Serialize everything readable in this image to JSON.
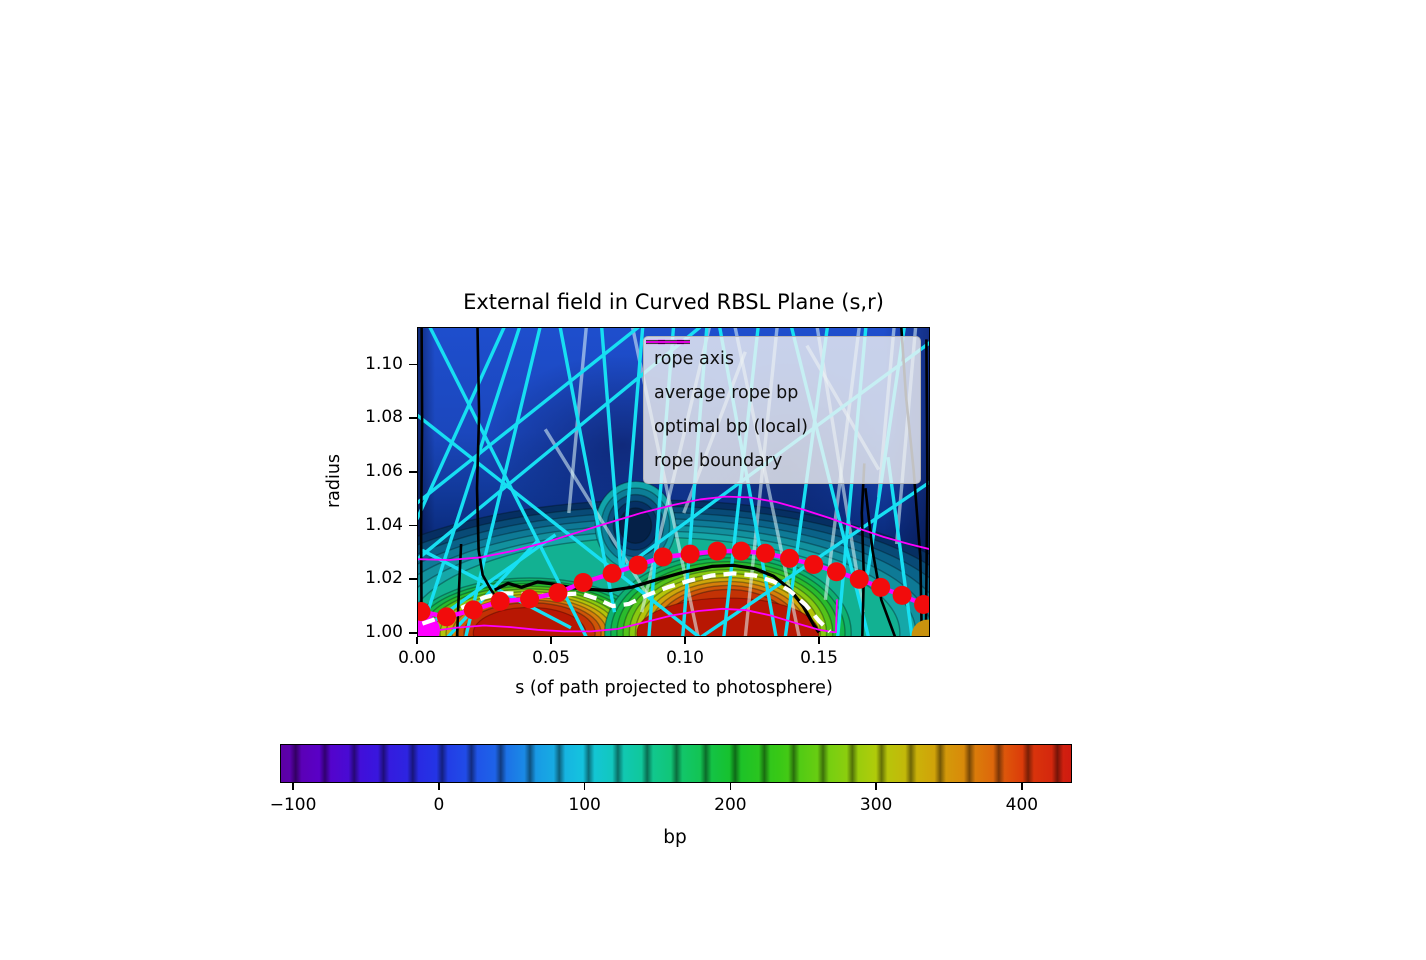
{
  "title": "External field in Curved RBSL Plane (s,r)",
  "axes": {
    "xlabel": "s (of path projected to photosphere)",
    "ylabel": "radius",
    "x_ticks": [
      {
        "value": 0.0,
        "label": "0.00"
      },
      {
        "value": 0.05,
        "label": "0.05"
      },
      {
        "value": 0.1,
        "label": "0.10"
      },
      {
        "value": 0.15,
        "label": "0.15"
      }
    ],
    "y_ticks": [
      {
        "value": 1.0,
        "label": "1.00"
      },
      {
        "value": 1.02,
        "label": "1.02"
      },
      {
        "value": 1.04,
        "label": "1.04"
      },
      {
        "value": 1.06,
        "label": "1.06"
      },
      {
        "value": 1.08,
        "label": "1.08"
      },
      {
        "value": 1.1,
        "label": "1.10"
      }
    ]
  },
  "legend": {
    "items": [
      {
        "label": "rope axis",
        "color": "#ff00ff",
        "width": 4.5,
        "dash": null
      },
      {
        "label": "average rope bp",
        "color": "#ffffff",
        "width": 4.2,
        "dash": "12 7"
      },
      {
        "label": "optimal bp (local)",
        "color": "#000000",
        "width": 3.6,
        "dash": null
      },
      {
        "label": "rope boundary",
        "color": "#ff00ff",
        "width": 1.8,
        "dash": null
      }
    ]
  },
  "colorbar": {
    "label": "bp",
    "domain": [
      -109,
      433
    ],
    "ticks": [
      {
        "value": -100,
        "label": "−100"
      },
      {
        "value": 0,
        "label": "0"
      },
      {
        "value": 100,
        "label": "100"
      },
      {
        "value": 200,
        "label": "200"
      },
      {
        "value": 300,
        "label": "300"
      },
      {
        "value": 400,
        "label": "400"
      }
    ],
    "gradient": [
      [
        0.0,
        "#5c00a4"
      ],
      [
        0.05,
        "#5a00c8"
      ],
      [
        0.11,
        "#3d12dc"
      ],
      [
        0.17,
        "#2a28e2"
      ],
      [
        0.2,
        "#2336e6"
      ],
      [
        0.27,
        "#1e62e8"
      ],
      [
        0.33,
        "#18a0e4"
      ],
      [
        0.386,
        "#14c6de"
      ],
      [
        0.45,
        "#10c8a2"
      ],
      [
        0.52,
        "#12c55e"
      ],
      [
        0.57,
        "#16c12c"
      ],
      [
        0.63,
        "#38c816"
      ],
      [
        0.7,
        "#7ccf10"
      ],
      [
        0.755,
        "#b2cb0a"
      ],
      [
        0.81,
        "#ccae09"
      ],
      [
        0.86,
        "#d88d0a"
      ],
      [
        0.905,
        "#de640b"
      ],
      [
        0.94,
        "#dc3a0a"
      ],
      [
        1.0,
        "#cf1b10"
      ]
    ]
  },
  "chart_data": {
    "type": "heatmap",
    "x_domain": [
      0,
      0.1914
    ],
    "y_domain": [
      0.9985,
      1.114
    ],
    "colormap_value_range": [
      -109,
      433
    ],
    "rope_axis_points": [
      [
        0.0015,
        1.008
      ],
      [
        0.011,
        1.006
      ],
      [
        0.021,
        1.0086
      ],
      [
        0.031,
        1.0118
      ],
      [
        0.042,
        1.0127
      ],
      [
        0.0526,
        1.015
      ],
      [
        0.062,
        1.0188
      ],
      [
        0.0728,
        1.0222
      ],
      [
        0.0825,
        1.0253
      ],
      [
        0.0918,
        1.0283
      ],
      [
        0.1019,
        1.0294
      ],
      [
        0.112,
        1.0305
      ],
      [
        0.121,
        1.0305
      ],
      [
        0.13,
        1.0297
      ],
      [
        0.139,
        1.0278
      ],
      [
        0.148,
        1.0255
      ],
      [
        0.1565,
        1.0228
      ],
      [
        0.165,
        1.02
      ],
      [
        0.173,
        1.017
      ],
      [
        0.181,
        1.014
      ],
      [
        0.189,
        1.0106
      ]
    ],
    "rope_axis_color": "#ff00ff",
    "dot_color": "#f20c0c",
    "dot_radius_px": 9.5,
    "average_bp": [
      [
        0.002,
        1.0035
      ],
      [
        0.01,
        1.0062
      ],
      [
        0.018,
        1.01
      ],
      [
        0.025,
        1.0132
      ],
      [
        0.031,
        1.0148
      ],
      [
        0.038,
        1.0147
      ],
      [
        0.046,
        1.0138
      ],
      [
        0.054,
        1.0143
      ],
      [
        0.061,
        1.0148
      ],
      [
        0.067,
        1.0128
      ],
      [
        0.073,
        1.01
      ],
      [
        0.079,
        1.0108
      ],
      [
        0.086,
        1.0142
      ],
      [
        0.094,
        1.0172
      ],
      [
        0.102,
        1.0196
      ],
      [
        0.11,
        1.0214
      ],
      [
        0.118,
        1.0222
      ],
      [
        0.126,
        1.0214
      ],
      [
        0.133,
        1.0192
      ],
      [
        0.139,
        1.0158
      ],
      [
        0.145,
        1.0105
      ],
      [
        0.15,
        1.0045
      ],
      [
        0.154,
        1.0005
      ]
    ],
    "optimal_bp": [
      [
        0.029,
        1.016
      ],
      [
        0.034,
        1.0185
      ],
      [
        0.039,
        1.017
      ],
      [
        0.045,
        1.019
      ],
      [
        0.051,
        1.0182
      ],
      [
        0.058,
        1.0168
      ],
      [
        0.065,
        1.0162
      ],
      [
        0.072,
        1.0158
      ],
      [
        0.08,
        1.017
      ],
      [
        0.09,
        1.02
      ],
      [
        0.1,
        1.0228
      ],
      [
        0.11,
        1.0248
      ],
      [
        0.118,
        1.0252
      ],
      [
        0.126,
        1.024
      ],
      [
        0.133,
        1.0212
      ],
      [
        0.139,
        1.0165
      ],
      [
        0.144,
        1.01
      ],
      [
        0.148,
        1.003
      ],
      [
        0.15,
        1.0002
      ]
    ],
    "rope_boundary_upper": [
      [
        0.0,
        1.0275
      ],
      [
        0.012,
        1.0272
      ],
      [
        0.024,
        1.0282
      ],
      [
        0.036,
        1.0306
      ],
      [
        0.048,
        1.0338
      ],
      [
        0.06,
        1.0375
      ],
      [
        0.072,
        1.0412
      ],
      [
        0.084,
        1.0448
      ],
      [
        0.096,
        1.0478
      ],
      [
        0.106,
        1.0498
      ],
      [
        0.115,
        1.0508
      ],
      [
        0.124,
        1.0505
      ],
      [
        0.134,
        1.0488
      ],
      [
        0.144,
        1.046
      ],
      [
        0.154,
        1.0428
      ],
      [
        0.164,
        1.0392
      ],
      [
        0.174,
        1.0358
      ],
      [
        0.184,
        1.033
      ],
      [
        0.1914,
        1.0312
      ]
    ],
    "rope_boundary_lower": [
      [
        0.004,
        1.0005
      ],
      [
        0.015,
        1.002
      ],
      [
        0.025,
        1.0028
      ],
      [
        0.035,
        1.0022
      ],
      [
        0.045,
        1.0012
      ],
      [
        0.055,
        1.0006
      ],
      [
        0.065,
        1.0006
      ],
      [
        0.075,
        1.0015
      ],
      [
        0.085,
        1.004
      ],
      [
        0.095,
        1.0065
      ],
      [
        0.105,
        1.0082
      ],
      [
        0.114,
        1.009
      ],
      [
        0.123,
        1.0085
      ],
      [
        0.132,
        1.0065
      ],
      [
        0.141,
        1.0038
      ],
      [
        0.15,
        1.0012
      ],
      [
        0.156,
        1.0002
      ]
    ],
    "rope_boundary_stub": [
      [
        0.1563,
        1.0
      ],
      [
        0.1567,
        1.0125
      ]
    ],
    "boundary_color": "#ff00ff",
    "footpoints": [
      {
        "s": 0.0026,
        "r": 1.001,
        "color": "#ff00ff",
        "radius_px": 16
      },
      {
        "s": 0.1905,
        "r": 0.999,
        "color": "#c8920e",
        "radius_px": 16
      }
    ],
    "field_lines": {
      "bright_color": "#17dff2",
      "pale_color": "rgba(224,247,249,0.55)",
      "bright": [
        [
          0.006,
          0.995,
          0.2,
          0.0
        ],
        [
          0.025,
          0.0,
          0.33,
          1.0
        ],
        [
          0.17,
          0.0,
          0.0,
          0.62
        ],
        [
          0.0,
          0.284,
          0.55,
          1.0
        ],
        [
          0.0,
          0.568,
          0.432,
          0.0
        ],
        [
          0.0,
          0.75,
          0.552,
          0.0
        ],
        [
          0.095,
          1.0,
          0.24,
          0.0
        ],
        [
          0.279,
          0.0,
          0.385,
          0.92
        ],
        [
          0.36,
          0.0,
          0.398,
          0.8
        ],
        [
          0.44,
          0.0,
          0.4,
          0.8
        ],
        [
          0.398,
          0.784,
          1.0,
          0.05
        ],
        [
          0.5,
          0.0,
          0.452,
          1.0
        ],
        [
          0.565,
          0.0,
          0.518,
          1.0
        ],
        [
          0.59,
          0.0,
          0.7,
          1.0
        ],
        [
          0.665,
          0.0,
          0.598,
          1.0
        ],
        [
          0.73,
          0.0,
          0.88,
          1.0
        ],
        [
          0.8,
          0.0,
          0.718,
          1.0
        ],
        [
          0.875,
          0.0,
          0.82,
          1.0
        ],
        [
          0.95,
          0.0,
          0.878,
          0.8
        ],
        [
          0.554,
          1.0,
          1.0,
          0.5
        ],
        [
          0.918,
          0.42,
          0.965,
          1.0
        ],
        [
          0.01,
          0.72,
          0.3,
          0.97
        ],
        [
          0.02,
          0.965,
          0.27,
          0.67
        ],
        [
          0.06,
          1.0,
          0.235,
          0.69
        ]
      ],
      "pale": [
        [
          0.42,
          0.0,
          0.548,
          1.0
        ],
        [
          0.57,
          0.0,
          0.438,
          0.92
        ],
        [
          0.62,
          0.0,
          0.745,
          1.0
        ],
        [
          0.702,
          0.0,
          0.64,
          1.0
        ],
        [
          0.78,
          0.0,
          0.87,
          0.92
        ],
        [
          0.862,
          0.0,
          0.796,
          0.88
        ],
        [
          0.93,
          0.0,
          0.9,
          0.55
        ],
        [
          0.972,
          0.0,
          0.935,
          0.7
        ],
        [
          0.33,
          0.0,
          0.296,
          0.6
        ],
        [
          0.25,
          0.33,
          0.455,
          0.88
        ],
        [
          0.64,
          0.08,
          0.52,
          0.6
        ],
        [
          0.76,
          0.06,
          0.9,
          0.46
        ]
      ]
    },
    "black_curves": [
      [
        [
          0.009,
          0
        ],
        [
          0.01,
          0.3
        ],
        [
          0.008,
          0.65
        ],
        [
          0.009,
          1
        ]
      ],
      [
        [
          0.118,
          0
        ],
        [
          0.121,
          0.28
        ],
        [
          0.117,
          0.52
        ],
        [
          0.12,
          0.72
        ],
        [
          0.128,
          0.8
        ],
        [
          0.143,
          0.845
        ],
        [
          0.15,
          0.862
        ]
      ],
      [
        [
          0.086,
          0.7
        ],
        [
          0.082,
          0.84
        ],
        [
          0.078,
          1.0
        ]
      ],
      [
        [
          0.872,
          0.44
        ],
        [
          0.867,
          0.6
        ],
        [
          0.871,
          0.8
        ],
        [
          0.868,
          1.0
        ]
      ],
      [
        [
          0.874,
          0.52
        ],
        [
          0.888,
          0.72
        ],
        [
          0.905,
          0.88
        ],
        [
          0.932,
          1.0
        ]
      ],
      [
        [
          0.944,
          0.0
        ],
        [
          0.953,
          0.22
        ],
        [
          0.968,
          0.46
        ],
        [
          0.981,
          0.74
        ],
        [
          0.984,
          1.0
        ]
      ],
      [
        [
          0.993,
          0.04
        ],
        [
          0.995,
          0.5
        ],
        [
          0.992,
          1.0
        ]
      ]
    ],
    "contour": {
      "arch": {
        "cx": 0.088,
        "cy": 1.0,
        "rx": 0.128,
        "ry": 0.0495,
        "shrink": 0.28,
        "levels": [
          "#062f62",
          "#084a76",
          "#0a6288",
          "#0e7a96",
          "#12919e",
          "#15a7a8",
          "#12b192"
        ]
      },
      "domes": [
        {
          "cx": 0.042,
          "cy": 1.0,
          "rx": 0.0445,
          "ry": 0.0205,
          "shrink": 0.45,
          "levels": [
            "#0fb070",
            "#14b64c",
            "#2abb2c",
            "#55c31a",
            "#8aca10",
            "#b4c40a",
            "#cfa60a",
            "#d67f0a",
            "#cf5507",
            "#c33205"
          ],
          "core": {
            "rx": 0.021,
            "ry": 0.0095,
            "color": "#b81703"
          }
        },
        {
          "cx": 0.116,
          "cy": 1.0,
          "rx": 0.046,
          "ry": 0.0295,
          "shrink": 0.45,
          "levels": [
            "#0fb070",
            "#14b64c",
            "#2abb2c",
            "#55c31a",
            "#8aca10",
            "#b4c40a",
            "#cfa60a",
            "#d67f0a",
            "#cf5507",
            "#c33205"
          ],
          "core": {
            "rx": 0.034,
            "ry": 0.013,
            "color": "#b81703"
          }
        }
      ],
      "valley": {
        "cx": 0.0815,
        "cy": 1.04,
        "rx": 0.015,
        "ry": 0.0165,
        "shrink": 0.6,
        "levels": [
          "#11a4aa",
          "#0c7e96",
          "#094e7c",
          "#063064",
          "#052148"
        ]
      }
    }
  }
}
